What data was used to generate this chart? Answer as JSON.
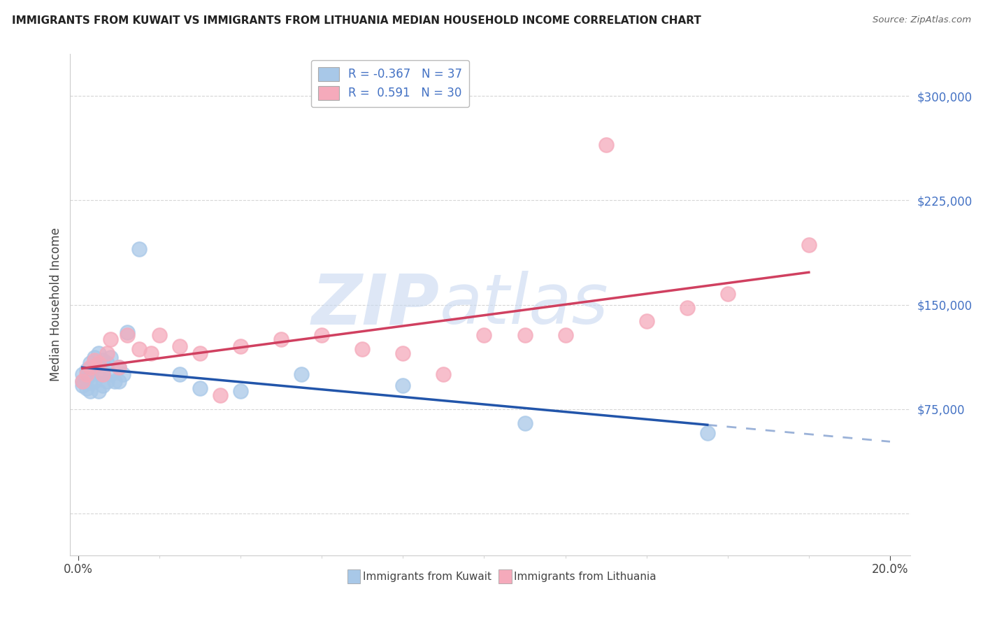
{
  "title": "IMMIGRANTS FROM KUWAIT VS IMMIGRANTS FROM LITHUANIA MEDIAN HOUSEHOLD INCOME CORRELATION CHART",
  "source": "Source: ZipAtlas.com",
  "ylabel": "Median Household Income",
  "xlim": [
    -0.002,
    0.205
  ],
  "ylim": [
    -30000,
    330000
  ],
  "yticks": [
    0,
    75000,
    150000,
    225000,
    300000
  ],
  "ytick_labels": [
    "",
    "$75,000",
    "$150,000",
    "$225,000",
    "$300,000"
  ],
  "kuwait_R": -0.367,
  "kuwait_N": 37,
  "lithuania_R": 0.591,
  "lithuania_N": 30,
  "kuwait_color": "#a8c8e8",
  "lithuania_color": "#f5aabb",
  "kuwait_line_color": "#2255aa",
  "lithuania_line_color": "#d04060",
  "watermark_color": "#c8d8f0",
  "background_color": "#ffffff",
  "kuwait_x": [
    0.001,
    0.001,
    0.001,
    0.002,
    0.002,
    0.002,
    0.003,
    0.003,
    0.003,
    0.003,
    0.004,
    0.004,
    0.004,
    0.005,
    0.005,
    0.005,
    0.005,
    0.006,
    0.006,
    0.006,
    0.007,
    0.007,
    0.008,
    0.008,
    0.009,
    0.01,
    0.01,
    0.011,
    0.012,
    0.015,
    0.025,
    0.03,
    0.04,
    0.055,
    0.08,
    0.11,
    0.155
  ],
  "kuwait_y": [
    100000,
    95000,
    92000,
    103000,
    97000,
    90000,
    108000,
    100000,
    94000,
    88000,
    112000,
    105000,
    95000,
    115000,
    107000,
    100000,
    88000,
    110000,
    100000,
    92000,
    108000,
    95000,
    112000,
    100000,
    95000,
    105000,
    95000,
    100000,
    130000,
    190000,
    100000,
    90000,
    88000,
    100000,
    92000,
    65000,
    58000
  ],
  "lithuania_x": [
    0.001,
    0.002,
    0.003,
    0.004,
    0.005,
    0.006,
    0.007,
    0.008,
    0.01,
    0.012,
    0.015,
    0.018,
    0.02,
    0.025,
    0.03,
    0.035,
    0.04,
    0.05,
    0.06,
    0.07,
    0.08,
    0.09,
    0.1,
    0.11,
    0.12,
    0.13,
    0.14,
    0.15,
    0.16,
    0.18
  ],
  "lithuania_y": [
    95000,
    100000,
    105000,
    110000,
    108000,
    100000,
    115000,
    125000,
    105000,
    128000,
    118000,
    115000,
    128000,
    120000,
    115000,
    85000,
    120000,
    125000,
    128000,
    118000,
    115000,
    100000,
    128000,
    128000,
    128000,
    265000,
    138000,
    148000,
    158000,
    193000
  ]
}
